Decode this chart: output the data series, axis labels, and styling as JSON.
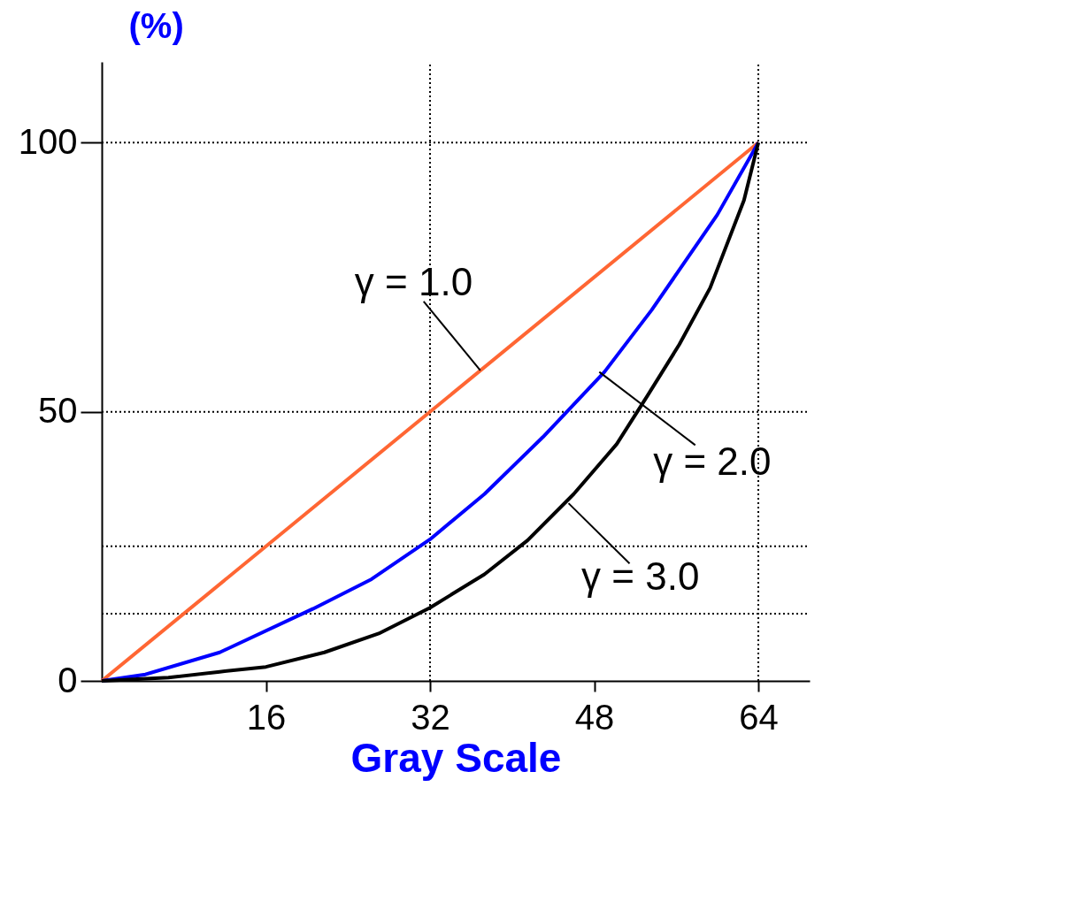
{
  "chart_data": {
    "type": "line",
    "ylabel": "(%)",
    "xlabel": "Gray Scale",
    "xlim": [
      0,
      69
    ],
    "xticks": [
      16,
      32,
      48,
      64
    ],
    "ylim": [
      0,
      115
    ],
    "yticks": [
      0,
      50,
      100
    ],
    "grid": false,
    "marker": "none",
    "line_style": "solid",
    "series": [
      {
        "color": "#ff6633",
        "x": [
          0,
          64
        ],
        "values": [
          0,
          100
        ]
      },
      {
        "color": "#0000ff",
        "x": [
          0,
          4.25,
          11.5,
          20.6,
          26.3,
          32,
          37.3,
          43,
          49,
          53.6,
          60,
          64
        ],
        "values": [
          0,
          1.2,
          5.3,
          13.4,
          18.9,
          26.3,
          34.7,
          45.3,
          57.4,
          68.9,
          86.6,
          100
        ]
      },
      {
        "color": "#000000",
        "x": [
          0,
          6.5,
          11.5,
          16,
          21.7,
          27,
          32,
          37.3,
          41.5,
          46,
          50.2,
          53.2,
          56.3,
          59.3,
          62.6,
          64
        ],
        "values": [
          0,
          0.6,
          1.7,
          2.6,
          5.3,
          8.8,
          13.6,
          19.8,
          26.1,
          34.7,
          44,
          53,
          62.5,
          73,
          89.3,
          100
        ]
      }
    ],
    "ref_lines": [
      {
        "axis": "y",
        "value": 100,
        "color": "#000000",
        "line_style": "dotted"
      },
      {
        "axis": "y",
        "value": 50,
        "color": "#000000",
        "line_style": "dotted"
      },
      {
        "axis": "y",
        "value": 25,
        "color": "#000000",
        "line_style": "dotted"
      },
      {
        "axis": "y",
        "value": 12.5,
        "color": "#000000",
        "line_style": "dotted"
      },
      {
        "axis": "x",
        "value": 32,
        "color": "#000000",
        "line_style": "dotted"
      },
      {
        "axis": "x",
        "value": 64,
        "color": "#000000",
        "line_style": "dotted"
      }
    ],
    "annotations": [
      {
        "text": "γ = 1.0",
        "x": 36.9,
        "y": 57.7
      },
      {
        "text": "γ = 2.0",
        "x": 48.5,
        "y": 57.4
      },
      {
        "text": "γ = 3.0",
        "x": 45.5,
        "y": 33
      }
    ]
  }
}
